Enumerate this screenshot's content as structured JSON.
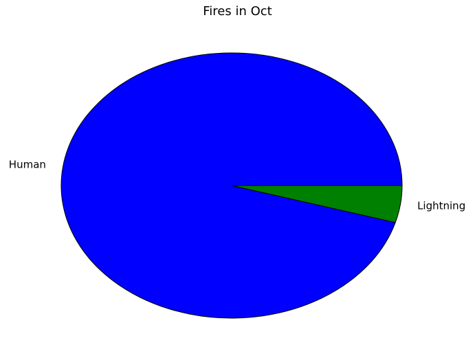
{
  "chart_data": {
    "type": "pie",
    "title": "Fires in Oct",
    "slices": [
      {
        "label": "Human",
        "value": 95.5,
        "color": "#0000ff"
      },
      {
        "label": "Lightning",
        "value": 4.5,
        "color": "#008000"
      }
    ],
    "start_angle_deg": 0,
    "direction": "counterclockwise",
    "edge_color": "#000000"
  }
}
